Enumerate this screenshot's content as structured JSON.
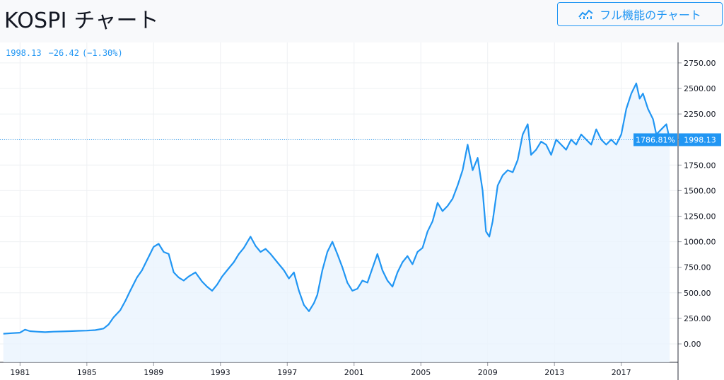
{
  "header": {
    "title": "KOSPI チャート",
    "full_chart_label": "フル機能のチャート",
    "full_chart_icon": "chart-line-icon"
  },
  "legend": {
    "last": "1998.13",
    "change": "−26.42",
    "change_pct": "(−1.30%)"
  },
  "price_badge": {
    "percent": "1786.81%",
    "value": "1998.13",
    "color": "#2196f3"
  },
  "colors": {
    "line": "#2196f3",
    "fill": "#eaf4fe",
    "grid": "#eef0f3"
  },
  "chart_data": {
    "type": "area",
    "title": "KOSPI チャート",
    "xlabel": "",
    "ylabel": "",
    "xlim": [
      1979.8,
      2020.4
    ],
    "ylim": [
      -180,
      2950
    ],
    "x_ticks": [
      1981,
      1985,
      1989,
      1993,
      1997,
      2001,
      2005,
      2009,
      2013,
      2017
    ],
    "y_ticks": [
      0,
      250,
      500,
      750,
      1000,
      1250,
      1500,
      1750,
      2000,
      2250,
      2500,
      2750
    ],
    "y_tick_labels": [
      "0.00",
      "250.00",
      "500.00",
      "750.00",
      "1000.00",
      "1250.00",
      "1500.00",
      "1750.00",
      "2000.00",
      "2250.00",
      "2500.00",
      "2750.00"
    ],
    "last_value": 1998.13,
    "series": [
      {
        "name": "",
        "x": [
          1980.0,
          1980.5,
          1981.0,
          1981.3,
          1981.6,
          1982.0,
          1982.5,
          1983.0,
          1983.5,
          1984.0,
          1984.5,
          1985.0,
          1985.5,
          1986.0,
          1986.3,
          1986.6,
          1987.0,
          1987.3,
          1987.6,
          1988.0,
          1988.3,
          1988.6,
          1989.0,
          1989.3,
          1989.6,
          1989.9,
          1990.2,
          1990.5,
          1990.8,
          1991.1,
          1991.5,
          1991.9,
          1992.2,
          1992.5,
          1992.8,
          1993.1,
          1993.4,
          1993.8,
          1994.1,
          1994.4,
          1994.8,
          1995.1,
          1995.4,
          1995.7,
          1996.0,
          1996.4,
          1996.8,
          1997.1,
          1997.4,
          1997.7,
          1998.0,
          1998.3,
          1998.6,
          1998.8,
          1999.1,
          1999.4,
          1999.7,
          2000.0,
          2000.3,
          2000.6,
          2000.9,
          2001.2,
          2001.5,
          2001.8,
          2002.1,
          2002.4,
          2002.7,
          2003.0,
          2003.3,
          2003.6,
          2003.9,
          2004.2,
          2004.5,
          2004.8,
          2005.1,
          2005.4,
          2005.7,
          2006.0,
          2006.3,
          2006.6,
          2006.9,
          2007.2,
          2007.5,
          2007.8,
          2008.1,
          2008.4,
          2008.7,
          2008.9,
          2009.1,
          2009.3,
          2009.6,
          2009.9,
          2010.2,
          2010.5,
          2010.8,
          2011.1,
          2011.4,
          2011.6,
          2011.9,
          2012.2,
          2012.5,
          2012.8,
          2013.1,
          2013.4,
          2013.7,
          2014.0,
          2014.3,
          2014.6,
          2014.9,
          2015.2,
          2015.5,
          2015.8,
          2016.1,
          2016.4,
          2016.7,
          2017.0,
          2017.3,
          2017.6,
          2017.9,
          2018.1,
          2018.3,
          2018.6,
          2018.9,
          2019.1,
          2019.4,
          2019.7,
          2019.9
        ],
        "values": [
          100,
          105,
          110,
          140,
          125,
          120,
          115,
          120,
          122,
          125,
          128,
          130,
          135,
          150,
          190,
          260,
          330,
          420,
          520,
          650,
          720,
          820,
          950,
          980,
          900,
          880,
          700,
          650,
          620,
          660,
          700,
          610,
          560,
          520,
          580,
          660,
          720,
          800,
          880,
          940,
          1050,
          960,
          900,
          930,
          880,
          800,
          720,
          640,
          700,
          520,
          380,
          320,
          400,
          480,
          720,
          900,
          1000,
          880,
          750,
          600,
          520,
          540,
          620,
          600,
          740,
          880,
          720,
          620,
          560,
          700,
          800,
          860,
          780,
          900,
          940,
          1100,
          1200,
          1380,
          1300,
          1350,
          1420,
          1550,
          1700,
          1950,
          1700,
          1820,
          1500,
          1100,
          1050,
          1200,
          1550,
          1650,
          1700,
          1680,
          1800,
          2050,
          2150,
          1850,
          1900,
          1980,
          1950,
          1850,
          2000,
          1950,
          1900,
          2000,
          1950,
          2050,
          2000,
          1950,
          2100,
          2000,
          1950,
          2000,
          1950,
          2050,
          2300,
          2450,
          2550,
          2400,
          2450,
          2300,
          2200,
          2050,
          2100,
          2150,
          1998.13
        ]
      }
    ]
  }
}
